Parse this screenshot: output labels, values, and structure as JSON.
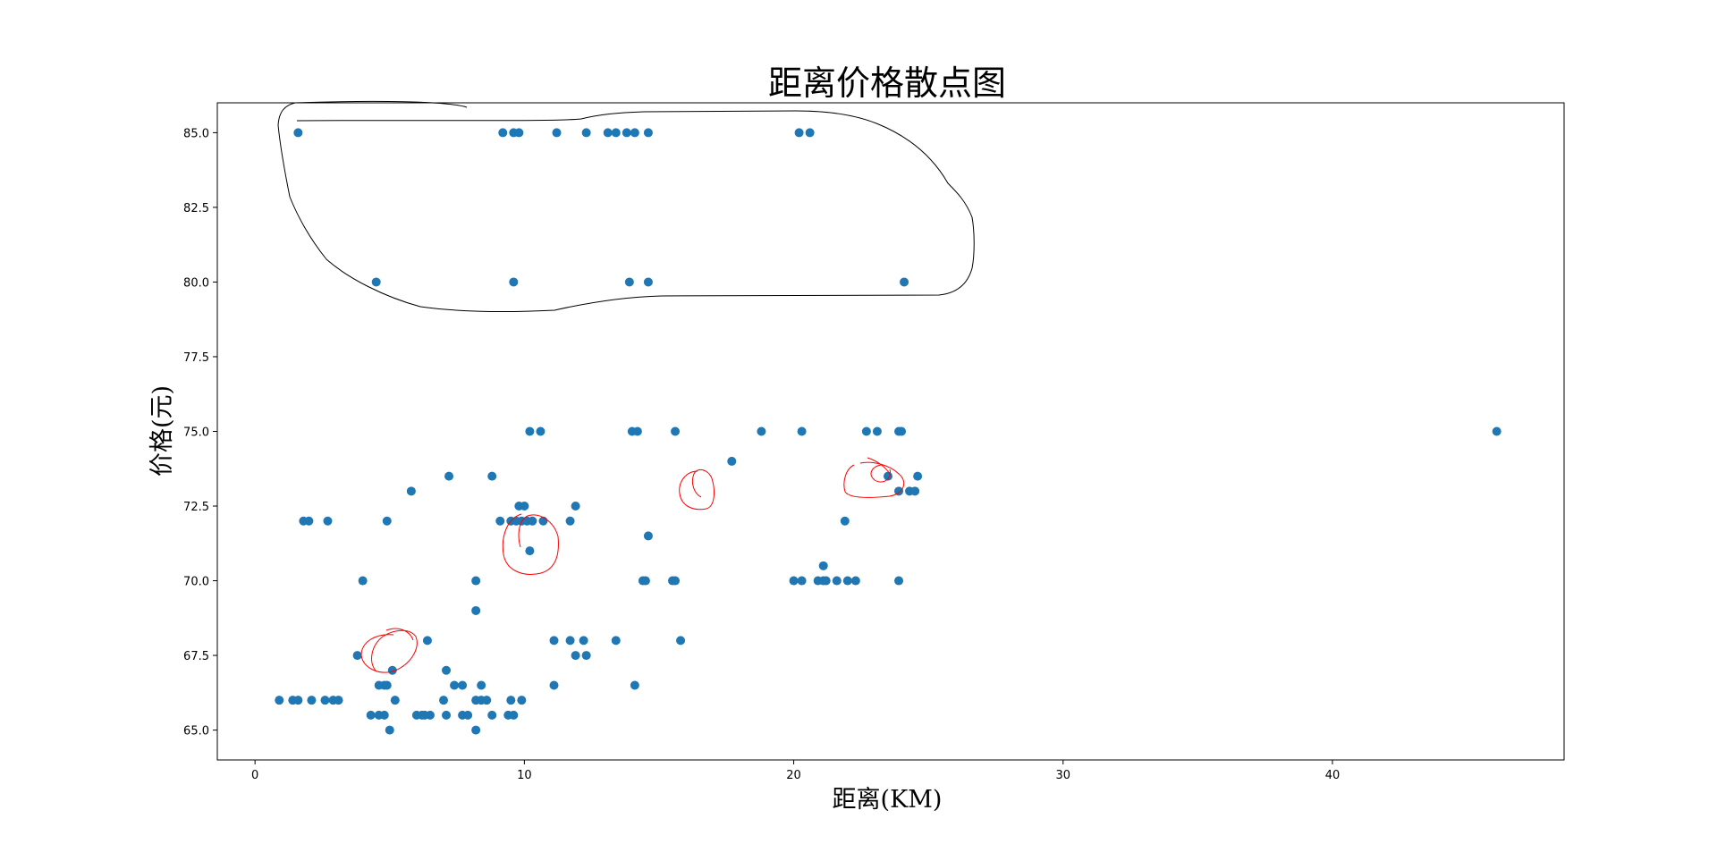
{
  "chart_data": {
    "type": "scatter",
    "title": "距离价格散点图",
    "xlabel": "距离(KM)",
    "ylabel": "价格(元)",
    "xlim": [
      -1.4,
      48.6
    ],
    "ylim": [
      64.0,
      86.0
    ],
    "xticks": [
      0,
      10,
      20,
      30,
      40
    ],
    "yticks": [
      65.0,
      67.5,
      70.0,
      72.5,
      75.0,
      77.5,
      80.0,
      82.5,
      85.0
    ],
    "grid": false,
    "point_color": "#1f77b4",
    "annotation_colors": {
      "outline": "#000000",
      "circles": "#ff0000"
    },
    "series": [
      {
        "points": [
          [
            1.6,
            85
          ],
          [
            9.2,
            85
          ],
          [
            9.6,
            85
          ],
          [
            9.8,
            85
          ],
          [
            11.2,
            85
          ],
          [
            12.3,
            85
          ],
          [
            13.1,
            85
          ],
          [
            13.4,
            85
          ],
          [
            13.8,
            85
          ],
          [
            14.1,
            85
          ],
          [
            14.6,
            85
          ],
          [
            20.2,
            85
          ],
          [
            20.6,
            85
          ],
          [
            4.5,
            80
          ],
          [
            9.6,
            80
          ],
          [
            13.9,
            80
          ],
          [
            14.6,
            80
          ],
          [
            24.1,
            80
          ],
          [
            10.2,
            75
          ],
          [
            10.6,
            75
          ],
          [
            14.0,
            75
          ],
          [
            14.2,
            75
          ],
          [
            15.6,
            75
          ],
          [
            18.8,
            75
          ],
          [
            20.3,
            75
          ],
          [
            22.7,
            75
          ],
          [
            23.1,
            75
          ],
          [
            23.9,
            75
          ],
          [
            24.0,
            75
          ],
          [
            46.1,
            75
          ],
          [
            17.7,
            74
          ],
          [
            7.2,
            73.5
          ],
          [
            8.8,
            73.5
          ],
          [
            24.6,
            73.5
          ],
          [
            23.5,
            73.5
          ],
          [
            5.8,
            73
          ],
          [
            23.9,
            73
          ],
          [
            24.3,
            73
          ],
          [
            24.5,
            73
          ],
          [
            9.8,
            72.5
          ],
          [
            10.0,
            72.5
          ],
          [
            11.9,
            72.5
          ],
          [
            1.8,
            72
          ],
          [
            2.0,
            72
          ],
          [
            2.7,
            72
          ],
          [
            4.9,
            72
          ],
          [
            9.1,
            72
          ],
          [
            9.5,
            72
          ],
          [
            9.7,
            72
          ],
          [
            9.9,
            72
          ],
          [
            10.1,
            72
          ],
          [
            10.3,
            72
          ],
          [
            10.7,
            72
          ],
          [
            11.7,
            72
          ],
          [
            21.9,
            72
          ],
          [
            14.6,
            71.5
          ],
          [
            10.2,
            71
          ],
          [
            21.1,
            70.5
          ],
          [
            4.0,
            70
          ],
          [
            8.2,
            70
          ],
          [
            14.4,
            70
          ],
          [
            14.5,
            70
          ],
          [
            15.5,
            70
          ],
          [
            15.6,
            70
          ],
          [
            20.0,
            70
          ],
          [
            20.3,
            70
          ],
          [
            20.9,
            70
          ],
          [
            21.1,
            70
          ],
          [
            21.2,
            70
          ],
          [
            21.6,
            70
          ],
          [
            22.0,
            70
          ],
          [
            22.3,
            70
          ],
          [
            23.9,
            70
          ],
          [
            8.2,
            69
          ],
          [
            6.4,
            68
          ],
          [
            11.1,
            68
          ],
          [
            11.7,
            68
          ],
          [
            12.2,
            68
          ],
          [
            13.4,
            68
          ],
          [
            15.8,
            68
          ],
          [
            3.8,
            67.5
          ],
          [
            11.9,
            67.5
          ],
          [
            12.3,
            67.5
          ],
          [
            5.1,
            67
          ],
          [
            7.1,
            67
          ],
          [
            4.6,
            66.5
          ],
          [
            4.8,
            66.5
          ],
          [
            4.9,
            66.5
          ],
          [
            7.4,
            66.5
          ],
          [
            7.7,
            66.5
          ],
          [
            8.4,
            66.5
          ],
          [
            11.1,
            66.5
          ],
          [
            14.1,
            66.5
          ],
          [
            0.9,
            66
          ],
          [
            1.4,
            66
          ],
          [
            1.6,
            66
          ],
          [
            2.1,
            66
          ],
          [
            2.6,
            66
          ],
          [
            2.9,
            66
          ],
          [
            3.1,
            66
          ],
          [
            5.2,
            66
          ],
          [
            7.0,
            66
          ],
          [
            8.2,
            66
          ],
          [
            8.4,
            66
          ],
          [
            8.6,
            66
          ],
          [
            9.5,
            66
          ],
          [
            9.9,
            66
          ],
          [
            4.3,
            65.5
          ],
          [
            4.6,
            65.5
          ],
          [
            4.8,
            65.5
          ],
          [
            6.0,
            65.5
          ],
          [
            6.2,
            65.5
          ],
          [
            6.3,
            65.5
          ],
          [
            6.5,
            65.5
          ],
          [
            7.1,
            65.5
          ],
          [
            7.7,
            65.5
          ],
          [
            7.9,
            65.5
          ],
          [
            8.8,
            65.5
          ],
          [
            9.4,
            65.5
          ],
          [
            9.6,
            65.5
          ],
          [
            5.0,
            65
          ],
          [
            8.2,
            65
          ]
        ]
      }
    ]
  }
}
